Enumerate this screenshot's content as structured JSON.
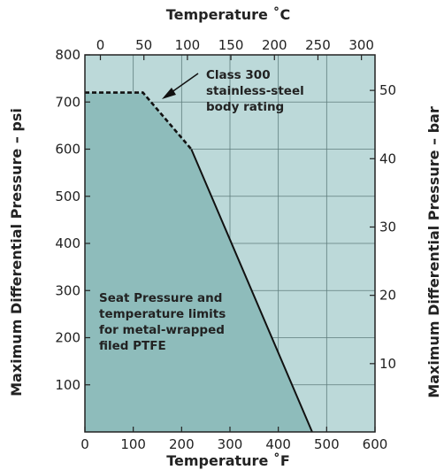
{
  "chart_data": {
    "type": "area",
    "top_axis": {
      "label": "Temperature ˚C",
      "ticks": [
        0,
        50,
        100,
        150,
        200,
        250,
        300
      ],
      "range": [
        -17.8,
        315.6
      ]
    },
    "bottom_axis": {
      "label": "Temperature ˚F",
      "ticks": [
        0,
        100,
        200,
        300,
        400,
        500,
        600
      ],
      "range": [
        0,
        600
      ]
    },
    "left_axis": {
      "label": "Maximum Differential Pressure – psi",
      "ticks": [
        100,
        200,
        300,
        400,
        500,
        600,
        700,
        800
      ],
      "range": [
        0,
        800
      ]
    },
    "right_axis": {
      "label": "Maximum Differential Pressure – bar",
      "ticks": [
        10,
        20,
        30,
        40,
        50
      ],
      "range": [
        0,
        55.2
      ]
    },
    "grid": true,
    "series": [
      {
        "name": "",
        "style": "dashed",
        "x": [
          0,
          120,
          220
        ],
        "y": [
          720,
          720,
          600
        ]
      },
      {
        "name": "",
        "style": "solid",
        "x": [
          220,
          470
        ],
        "y": [
          600,
          0
        ]
      }
    ],
    "regions": {
      "seat_limit_fill": "#8ebcbb",
      "outer_fill": "#bcd9d9"
    },
    "annotations": {
      "body_rating": [
        "Class 300",
        "stainless-steel",
        "body rating"
      ],
      "seat_limits": [
        "Seat Pressure and",
        "temperature limits",
        "for metal-wrapped",
        "filed PTFE"
      ]
    },
    "colors": {
      "line": "#111111",
      "grid": "#5f7d7d",
      "text": "#222222"
    }
  }
}
